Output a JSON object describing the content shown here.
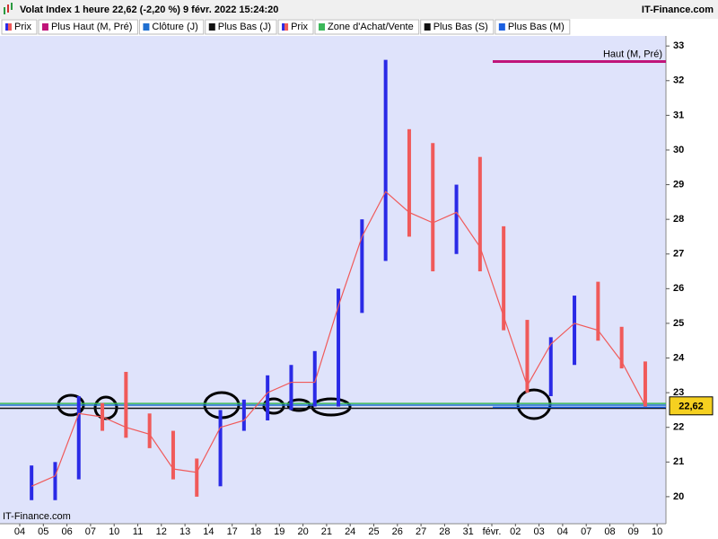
{
  "chart_data": {
    "type": "range",
    "title": "Volat Index 1 heure 22,62 (-2,20 %) 9 févr. 2022 15:24:20",
    "source": "IT-Finance.com",
    "categories": [
      "04",
      "05",
      "06",
      "07",
      "10",
      "11",
      "12",
      "13",
      "14",
      "17",
      "18",
      "19",
      "20",
      "21",
      "24",
      "25",
      "26",
      "27",
      "28",
      "31",
      "févr.",
      "02",
      "03",
      "04",
      "07",
      "08",
      "09",
      "10"
    ],
    "series": [
      {
        "name": "Prix",
        "high": [
          20.9,
          21.0,
          22.9,
          22.7,
          23.6,
          22.4,
          21.9,
          21.1,
          22.5,
          22.8,
          23.5,
          23.8,
          24.2,
          26.0,
          28.0,
          32.6,
          30.6,
          30.2,
          29.0,
          29.8,
          27.8,
          25.1,
          24.6,
          25.8,
          26.2,
          24.9,
          23.9,
          null
        ],
        "low": [
          19.9,
          19.9,
          20.5,
          21.9,
          21.7,
          21.4,
          20.5,
          20.0,
          20.3,
          21.9,
          22.2,
          22.5,
          22.6,
          22.6,
          25.3,
          26.8,
          27.5,
          26.5,
          27.0,
          26.5,
          24.8,
          23.0,
          22.9,
          23.8,
          24.5,
          23.7,
          22.6,
          null
        ],
        "close": [
          20.3,
          20.6,
          22.4,
          22.3,
          22.0,
          21.8,
          20.8,
          20.7,
          22.0,
          22.2,
          23.0,
          23.3,
          23.3,
          25.5,
          27.5,
          28.8,
          28.2,
          27.9,
          28.2,
          27.2,
          25.2,
          23.2,
          24.4,
          25.0,
          24.8,
          23.9,
          22.62,
          null
        ],
        "up_color": "#2a2ae6",
        "down_color": "#f05a5a"
      }
    ],
    "legend": [
      {
        "name": "Prix",
        "color": "#2a2ae6",
        "color2": "#f05a5a"
      },
      {
        "name": "Plus Haut (M, Pré)",
        "color": "#c0157a",
        "value": 32.55,
        "label": "Haut (M, Pré)"
      },
      {
        "name": "Clôture (J)",
        "color": "#1f6fd0",
        "value": 22.64
      },
      {
        "name": "Plus Bas (J)",
        "color": "#111111",
        "value": 22.55
      },
      {
        "name": "Prix",
        "color": "#2a2ae6",
        "color2": "#f05a5a"
      },
      {
        "name": "Zone d'Achat/Vente",
        "color": "#3cb85a",
        "value": 22.69
      },
      {
        "name": "Plus Bas (S)",
        "color": "#111111"
      },
      {
        "name": "Plus Bas (M)",
        "color": "#1a5fe0",
        "value": 22.58
      }
    ],
    "last_price": {
      "value": 22.62,
      "label": "22,62"
    },
    "ylim": [
      19.22,
      33.29
    ],
    "yticks": [
      20,
      21,
      22,
      23,
      24,
      25,
      26,
      27,
      28,
      29,
      30,
      31,
      32,
      33
    ],
    "background": "#dfe3fb"
  }
}
